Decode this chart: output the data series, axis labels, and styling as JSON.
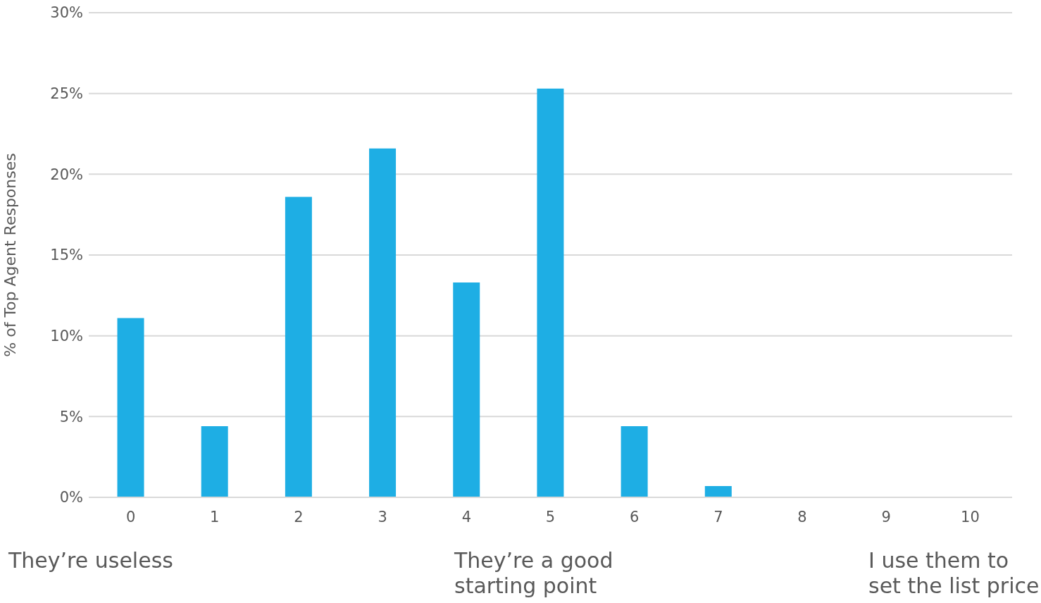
{
  "chart_data": {
    "type": "bar",
    "ylabel": "% of Top Agent Responses",
    "categories": [
      "0",
      "1",
      "2",
      "3",
      "4",
      "5",
      "6",
      "7",
      "8",
      "9",
      "10"
    ],
    "values": [
      11.1,
      4.4,
      18.6,
      21.6,
      13.3,
      25.3,
      4.4,
      0.7,
      0,
      0,
      0
    ],
    "color": "#1eaee4",
    "ylim": [
      0,
      30
    ],
    "yticks": [
      {
        "value": 0,
        "label": "0%"
      },
      {
        "value": 5,
        "label": "5%"
      },
      {
        "value": 10,
        "label": "10%"
      },
      {
        "value": 15,
        "label": "15%"
      },
      {
        "value": 20,
        "label": "20%"
      },
      {
        "value": 25,
        "label": "25%"
      },
      {
        "value": 30,
        "label": "30%"
      }
    ],
    "grid": "y",
    "annotations": [
      "They’re useless",
      "They’re a good starting point",
      "I use them to set the list price"
    ]
  }
}
